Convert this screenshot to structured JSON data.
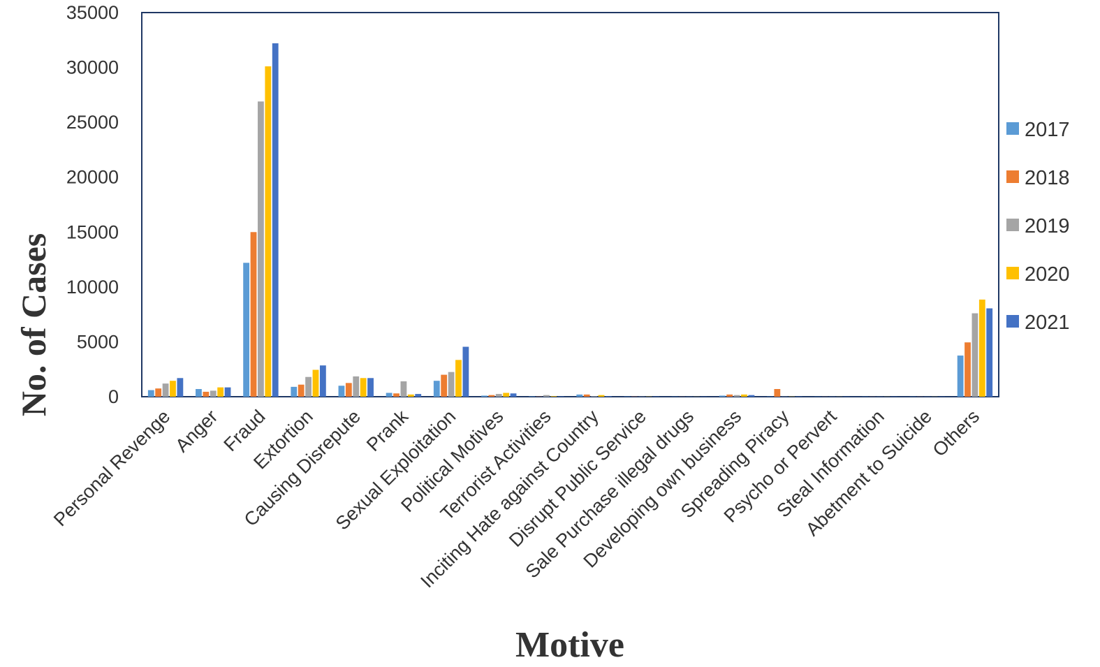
{
  "chart_data": {
    "type": "bar",
    "title": "",
    "xlabel": "Motive",
    "ylabel": "No. of Cases",
    "ylim": [
      0,
      35000
    ],
    "yticks": [
      0,
      5000,
      10000,
      15000,
      20000,
      25000,
      30000,
      35000
    ],
    "grid": false,
    "legend_position": "right",
    "categories": [
      "Personal Revenge",
      "Anger",
      "Fraud",
      "Extortion",
      "Causing Disrepute",
      "Prank",
      "Sexual Exploitation",
      "Political Motives",
      "Terrorist Activities",
      "Inciting Hate against Country",
      "Disrupt Public Service",
      "Sale Purchase illegal drugs",
      "Developing own business",
      "Spreading Piracy",
      "Psycho or Pervert",
      "Steal Information",
      "Abetment to Suicide",
      "Others"
    ],
    "series": [
      {
        "name": "2017",
        "color": "#5b9bd5",
        "values": [
          600,
          700,
          12200,
          900,
          1000,
          350,
          1450,
          100,
          30,
          200,
          20,
          10,
          100,
          20,
          10,
          10,
          10,
          3750
        ]
      },
      {
        "name": "2018",
        "color": "#ed7d31",
        "values": [
          750,
          450,
          15000,
          1100,
          1250,
          300,
          2000,
          150,
          20,
          200,
          20,
          10,
          200,
          700,
          10,
          10,
          10,
          4950
        ]
      },
      {
        "name": "2019",
        "color": "#a5a5a5",
        "values": [
          1200,
          550,
          26900,
          1800,
          1850,
          1400,
          2250,
          250,
          150,
          50,
          20,
          10,
          150,
          20,
          10,
          10,
          10,
          7600
        ]
      },
      {
        "name": "2020",
        "color": "#ffc000",
        "values": [
          1450,
          850,
          30100,
          2450,
          1700,
          200,
          3350,
          350,
          50,
          150,
          20,
          10,
          200,
          20,
          10,
          10,
          10,
          8850
        ]
      },
      {
        "name": "2021",
        "color": "#4472c4",
        "values": [
          1700,
          850,
          32200,
          2850,
          1700,
          250,
          4550,
          300,
          30,
          50,
          20,
          10,
          150,
          20,
          10,
          10,
          10,
          8050
        ]
      }
    ]
  }
}
